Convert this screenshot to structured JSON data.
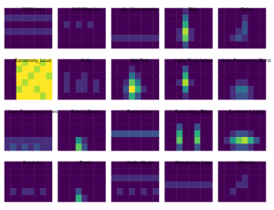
{
  "chart_data": [
    {
      "type": "heatmap",
      "title": "1080Lines",
      "tick_labels": false,
      "cells": [
        [
          1,
          1,
          1,
          1,
          1,
          1,
          1,
          1
        ],
        [
          2,
          2,
          2,
          2,
          2,
          2,
          2,
          2
        ],
        [
          1,
          1,
          1,
          1,
          1,
          1,
          1,
          1
        ],
        [
          2,
          2,
          2,
          2,
          2,
          2,
          2,
          2
        ],
        [
          1,
          1,
          1,
          1,
          1,
          1,
          1,
          1
        ],
        [
          1,
          1,
          1,
          1,
          1,
          1,
          1,
          1
        ]
      ]
    },
    {
      "type": "heatmap",
      "title": "1400Ripples",
      "tick_labels": false,
      "cells": [
        [
          1,
          1,
          1,
          1,
          1,
          1,
          1,
          1
        ],
        [
          1,
          1,
          1,
          1,
          1,
          1,
          1,
          1
        ],
        [
          1,
          2,
          1,
          2,
          1,
          2,
          1,
          1
        ],
        [
          1,
          1,
          1,
          1,
          1,
          1,
          1,
          1
        ],
        [
          1,
          1,
          1,
          1,
          1,
          1,
          1,
          1
        ],
        [
          1,
          1,
          1,
          1,
          1,
          1,
          1,
          1
        ]
      ]
    },
    {
      "type": "heatmap",
      "title": "Air_Compressor",
      "tick_labels": false,
      "cells": [
        [
          1,
          1,
          1,
          1,
          1,
          1,
          1,
          1
        ],
        [
          1,
          1,
          1,
          1,
          1,
          1,
          1,
          1
        ],
        [
          1,
          1,
          1,
          1,
          1,
          1,
          1,
          1
        ],
        [
          1,
          1,
          1,
          1,
          1,
          1,
          1,
          1
        ],
        [
          2,
          2,
          2,
          2,
          2,
          2,
          2,
          2
        ],
        [
          1,
          1,
          1,
          1,
          1,
          1,
          1,
          1
        ]
      ]
    },
    {
      "type": "heatmap",
      "title": "Blip",
      "tick_labels": false,
      "cells": [
        [
          1,
          1,
          1,
          2,
          1,
          1,
          1,
          1
        ],
        [
          1,
          1,
          1,
          4,
          1,
          1,
          1,
          1
        ],
        [
          1,
          1,
          1,
          6,
          1,
          1,
          1,
          1
        ],
        [
          1,
          1,
          2,
          8,
          2,
          1,
          1,
          1
        ],
        [
          1,
          1,
          2,
          7,
          2,
          1,
          1,
          1
        ],
        [
          1,
          1,
          1,
          3,
          1,
          1,
          1,
          1
        ]
      ]
    },
    {
      "type": "heatmap",
      "title": "Chirp",
      "tick_labels": false,
      "cells": [
        [
          1,
          1,
          1,
          1,
          1,
          1,
          1,
          1
        ],
        [
          1,
          1,
          1,
          1,
          2,
          1,
          1,
          1
        ],
        [
          1,
          1,
          1,
          1,
          3,
          1,
          1,
          1
        ],
        [
          1,
          1,
          1,
          2,
          3,
          1,
          1,
          1
        ],
        [
          1,
          1,
          2,
          3,
          2,
          1,
          1,
          1
        ],
        [
          1,
          1,
          1,
          1,
          1,
          1,
          1,
          1
        ]
      ]
    },
    {
      "type": "heatmap",
      "title": "Extremely_Loud",
      "tick_labels": false,
      "cells": [
        [
          1,
          1,
          9,
          8,
          9,
          9,
          8,
          9
        ],
        [
          1,
          1,
          8,
          9,
          9,
          8,
          9,
          9
        ],
        [
          1,
          1,
          9,
          9,
          8,
          9,
          9,
          8
        ],
        [
          1,
          1,
          9,
          8,
          9,
          9,
          9,
          9
        ],
        [
          1,
          1,
          8,
          9,
          9,
          8,
          9,
          9
        ],
        [
          1,
          1,
          9,
          9,
          9,
          9,
          8,
          9
        ]
      ]
    },
    {
      "type": "heatmap",
      "title": "Helix",
      "tick_labels": false,
      "cells": [
        [
          1,
          1,
          1,
          1,
          1,
          1,
          1,
          1
        ],
        [
          1,
          1,
          1,
          1,
          1,
          1,
          1,
          1
        ],
        [
          1,
          2,
          1,
          1,
          2,
          1,
          1,
          1
        ],
        [
          1,
          2,
          1,
          2,
          2,
          1,
          2,
          1
        ],
        [
          1,
          2,
          1,
          2,
          2,
          1,
          2,
          1
        ],
        [
          1,
          1,
          1,
          1,
          1,
          1,
          1,
          1
        ]
      ]
    },
    {
      "type": "heatmap",
      "title": "Koi_Fish",
      "tick_labels": false,
      "cells": [
        [
          1,
          1,
          1,
          1,
          1,
          1,
          1,
          1
        ],
        [
          1,
          1,
          1,
          2,
          1,
          1,
          1,
          1
        ],
        [
          1,
          1,
          1,
          4,
          2,
          1,
          1,
          1
        ],
        [
          1,
          1,
          2,
          7,
          4,
          1,
          1,
          1
        ],
        [
          1,
          1,
          3,
          9,
          6,
          2,
          1,
          1
        ],
        [
          1,
          1,
          2,
          6,
          3,
          1,
          1,
          1
        ]
      ]
    },
    {
      "type": "heatmap",
      "title": "Light_Modulation",
      "tick_labels": false,
      "cells": [
        [
          1,
          1,
          1,
          1,
          1,
          1,
          1,
          1
        ],
        [
          1,
          1,
          1,
          3,
          1,
          1,
          1,
          1
        ],
        [
          1,
          1,
          1,
          6,
          1,
          1,
          1,
          1
        ],
        [
          1,
          1,
          2,
          8,
          2,
          1,
          1,
          1
        ],
        [
          1,
          1,
          1,
          5,
          1,
          1,
          1,
          1
        ],
        [
          1,
          1,
          1,
          2,
          1,
          1,
          1,
          1
        ]
      ]
    },
    {
      "type": "heatmap",
      "title": "Low_Frequency_Burst",
      "tick_labels": false,
      "cells": [
        [
          1,
          1,
          1,
          1,
          1,
          1,
          1,
          1
        ],
        [
          1,
          1,
          1,
          1,
          1,
          1,
          1,
          1
        ],
        [
          1,
          1,
          1,
          1,
          1,
          1,
          1,
          1
        ],
        [
          1,
          1,
          1,
          2,
          2,
          1,
          1,
          1
        ],
        [
          1,
          1,
          2,
          4,
          4,
          2,
          1,
          1
        ],
        [
          1,
          1,
          2,
          3,
          3,
          2,
          1,
          1
        ]
      ]
    },
    {
      "type": "heatmap",
      "title": "Low_Frequency_Lines",
      "tick_labels": false,
      "cells": [
        [
          1,
          1,
          1,
          1,
          1,
          1,
          1,
          1
        ],
        [
          1,
          1,
          1,
          1,
          1,
          1,
          1,
          1
        ],
        [
          1,
          1,
          1,
          1,
          1,
          1,
          1,
          1
        ],
        [
          1,
          1,
          1,
          1,
          1,
          1,
          1,
          1
        ],
        [
          2,
          2,
          2,
          2,
          2,
          2,
          2,
          2
        ],
        [
          2,
          3,
          2,
          3,
          2,
          3,
          2,
          2
        ]
      ]
    },
    {
      "type": "heatmap",
      "title": "Paired_Doves",
      "tick_labels": false,
      "cells": [
        [
          1,
          1,
          1,
          1,
          1,
          1,
          1,
          1
        ],
        [
          1,
          1,
          1,
          1,
          1,
          1,
          1,
          1
        ],
        [
          1,
          1,
          1,
          1,
          1,
          1,
          1,
          1
        ],
        [
          1,
          1,
          1,
          1,
          1,
          1,
          1,
          1
        ],
        [
          1,
          1,
          1,
          5,
          2,
          1,
          1,
          1
        ],
        [
          1,
          1,
          1,
          7,
          3,
          1,
          1,
          1
        ]
      ]
    },
    {
      "type": "heatmap",
      "title": "Power_Line",
      "tick_labels": false,
      "cells": [
        [
          1,
          1,
          1,
          1,
          1,
          1,
          1,
          1
        ],
        [
          1,
          1,
          1,
          1,
          1,
          1,
          1,
          1
        ],
        [
          1,
          1,
          1,
          1,
          1,
          1,
          1,
          1
        ],
        [
          3,
          3,
          3,
          3,
          3,
          3,
          3,
          3
        ],
        [
          1,
          1,
          1,
          1,
          1,
          1,
          1,
          1
        ],
        [
          1,
          1,
          1,
          1,
          1,
          1,
          1,
          1
        ]
      ]
    },
    {
      "type": "heatmap",
      "title": "Repeating_Blips",
      "tick_labels": false,
      "cells": [
        [
          1,
          1,
          1,
          1,
          1,
          1,
          1,
          1
        ],
        [
          1,
          1,
          1,
          1,
          1,
          1,
          1,
          1
        ],
        [
          1,
          1,
          3,
          1,
          1,
          3,
          1,
          1
        ],
        [
          1,
          1,
          6,
          1,
          1,
          6,
          1,
          1
        ],
        [
          1,
          1,
          7,
          1,
          1,
          7,
          1,
          1
        ],
        [
          1,
          1,
          3,
          1,
          1,
          3,
          1,
          1
        ]
      ]
    },
    {
      "type": "heatmap",
      "title": "Scattered_Light",
      "tick_labels": false,
      "cells": [
        [
          1,
          1,
          1,
          1,
          1,
          1,
          1,
          1
        ],
        [
          1,
          1,
          1,
          1,
          1,
          1,
          1,
          1
        ],
        [
          1,
          1,
          1,
          1,
          1,
          1,
          1,
          1
        ],
        [
          1,
          1,
          2,
          3,
          3,
          2,
          1,
          1
        ],
        [
          1,
          2,
          5,
          7,
          8,
          6,
          3,
          1
        ],
        [
          1,
          1,
          2,
          3,
          3,
          2,
          1,
          1
        ]
      ]
    },
    {
      "type": "heatmap",
      "title": "Scratchy",
      "tick_labels": false,
      "cells": [
        [
          1,
          1,
          1,
          1,
          1,
          1,
          1,
          1
        ],
        [
          1,
          1,
          1,
          1,
          1,
          1,
          1,
          1
        ],
        [
          1,
          1,
          1,
          1,
          1,
          1,
          1,
          1
        ],
        [
          1,
          1,
          1,
          1,
          1,
          1,
          1,
          1
        ],
        [
          1,
          2,
          1,
          2,
          2,
          1,
          2,
          1
        ],
        [
          1,
          1,
          1,
          1,
          1,
          1,
          1,
          1
        ]
      ]
    },
    {
      "type": "heatmap",
      "title": "Tomte",
      "tick_labels": false,
      "cells": [
        [
          1,
          1,
          1,
          1,
          1,
          1,
          1,
          1
        ],
        [
          1,
          1,
          1,
          1,
          1,
          1,
          1,
          1
        ],
        [
          1,
          1,
          1,
          1,
          1,
          1,
          1,
          1
        ],
        [
          1,
          1,
          1,
          1,
          1,
          1,
          1,
          1
        ],
        [
          1,
          1,
          1,
          3,
          1,
          1,
          1,
          1
        ],
        [
          1,
          1,
          1,
          6,
          2,
          1,
          1,
          1
        ]
      ]
    },
    {
      "type": "heatmap",
      "title": "Violin_Mode",
      "tick_labels": false,
      "cells": [
        [
          1,
          1,
          1,
          1,
          1,
          1,
          1,
          1
        ],
        [
          1,
          1,
          1,
          1,
          1,
          1,
          1,
          1
        ],
        [
          2,
          2,
          2,
          2,
          2,
          2,
          2,
          2
        ],
        [
          1,
          1,
          1,
          1,
          1,
          1,
          1,
          1
        ],
        [
          1,
          2,
          1,
          2,
          1,
          2,
          1,
          2
        ],
        [
          1,
          1,
          1,
          1,
          1,
          1,
          1,
          1
        ]
      ]
    },
    {
      "type": "heatmap",
      "title": "Wandering_Line",
      "tick_labels": false,
      "cells": [
        [
          1,
          1,
          1,
          1,
          1,
          1,
          1,
          1
        ],
        [
          1,
          1,
          1,
          1,
          1,
          1,
          1,
          1
        ],
        [
          1,
          1,
          1,
          1,
          1,
          1,
          1,
          1
        ],
        [
          2,
          2,
          2,
          2,
          2,
          2,
          2,
          2
        ],
        [
          1,
          1,
          1,
          1,
          1,
          1,
          1,
          1
        ],
        [
          1,
          1,
          1,
          1,
          1,
          1,
          1,
          1
        ]
      ]
    },
    {
      "type": "heatmap",
      "title": "Whistle",
      "tick_labels": false,
      "cells": [
        [
          1,
          1,
          1,
          1,
          1,
          1,
          1,
          1
        ],
        [
          1,
          1,
          1,
          1,
          1,
          1,
          1,
          1
        ],
        [
          1,
          1,
          1,
          1,
          2,
          1,
          1,
          1
        ],
        [
          1,
          1,
          1,
          2,
          2,
          1,
          1,
          1
        ],
        [
          1,
          1,
          2,
          1,
          1,
          1,
          1,
          1
        ],
        [
          1,
          1,
          1,
          1,
          1,
          1,
          1,
          1
        ]
      ]
    }
  ]
}
